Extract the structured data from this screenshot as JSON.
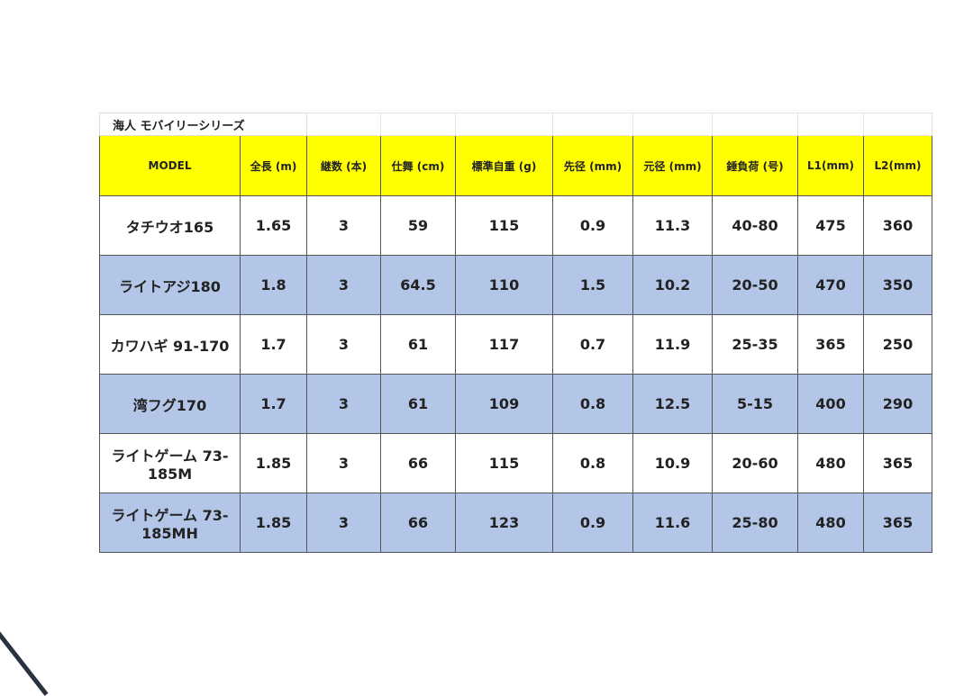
{
  "title": "海人 モバイリーシリーズ",
  "headers": [
    "MODEL",
    "全長 (m)",
    "継数 (本)",
    "仕舞 (cm)",
    "標準自重 (g)",
    "先径 (mm)",
    "元径 (mm)",
    "錘負荷 (号)",
    "L1(mm)",
    "L2(mm)"
  ],
  "rows": [
    [
      "タチウオ165",
      "1.65",
      "3",
      "59",
      "115",
      "0.9",
      "11.3",
      "40-80",
      "475",
      "360"
    ],
    [
      "ライトアジ180",
      "1.8",
      "3",
      "64.5",
      "110",
      "1.5",
      "10.2",
      "20-50",
      "470",
      "350"
    ],
    [
      "カワハギ 91-170",
      "1.7",
      "3",
      "61",
      "117",
      "0.7",
      "11.9",
      "25-35",
      "365",
      "250"
    ],
    [
      "湾フグ170",
      "1.7",
      "3",
      "61",
      "109",
      "0.8",
      "12.5",
      "5-15",
      "400",
      "290"
    ],
    [
      "ライトゲーム 73-185M",
      "1.85",
      "3",
      "66",
      "115",
      "0.8",
      "10.9",
      "20-60",
      "480",
      "365"
    ],
    [
      "ライトゲーム 73-185MH",
      "1.85",
      "3",
      "66",
      "123",
      "0.9",
      "11.6",
      "25-80",
      "480",
      "365"
    ]
  ],
  "colors": {
    "header": "#ffff00",
    "alt_row": "#b4c6e7"
  }
}
